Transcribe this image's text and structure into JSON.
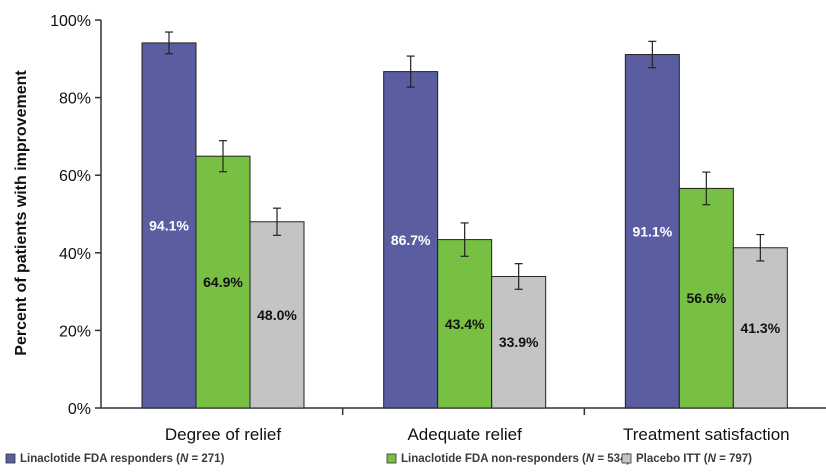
{
  "chart_data": {
    "type": "bar",
    "title": "",
    "xlabel": "",
    "ylabel": "Percent of patients with improvement",
    "ylim": [
      0,
      100
    ],
    "yticks": [
      "0%",
      "20%",
      "40%",
      "60%",
      "80%",
      "100%"
    ],
    "ytick_values": [
      0,
      20,
      40,
      60,
      80,
      100
    ],
    "grid": false,
    "legend_position": "bottom",
    "categories": [
      "Degree of relief",
      "Adequate relief",
      "Treatment satisfaction"
    ],
    "series": [
      {
        "name": "Linaclotide FDA responders (N = 271)",
        "legend_prefix": "Linaclotide FDA responders (",
        "legend_n": "N",
        "legend_suffix": " = 271)",
        "color": "#5a5da0",
        "label_color": "#ffffff",
        "values": [
          94.1,
          86.7,
          91.1
        ],
        "labels": [
          "94.1%",
          "86.7%",
          "91.1%"
        ],
        "error": [
          2.8,
          4.0,
          3.4
        ]
      },
      {
        "name": "Linaclotide FDA non-responders (N = 534)",
        "legend_prefix": "Linaclotide FDA non-responders (",
        "legend_n": "N",
        "legend_suffix": " = 534)",
        "color": "#77c043",
        "label_color": "#111111",
        "values": [
          64.9,
          43.4,
          56.6
        ],
        "labels": [
          "64.9%",
          "43.4%",
          "56.6%"
        ],
        "error": [
          4.0,
          4.3,
          4.2
        ]
      },
      {
        "name": "Placebo ITT (N = 797)",
        "legend_prefix": "Placebo ITT (",
        "legend_n": "N",
        "legend_suffix": " = 797)",
        "color": "#c4c4c4",
        "label_color": "#111111",
        "values": [
          48.0,
          33.9,
          41.3
        ],
        "labels": [
          "48.0%",
          "33.9%",
          "41.3%"
        ],
        "error": [
          3.5,
          3.3,
          3.4
        ]
      }
    ]
  }
}
